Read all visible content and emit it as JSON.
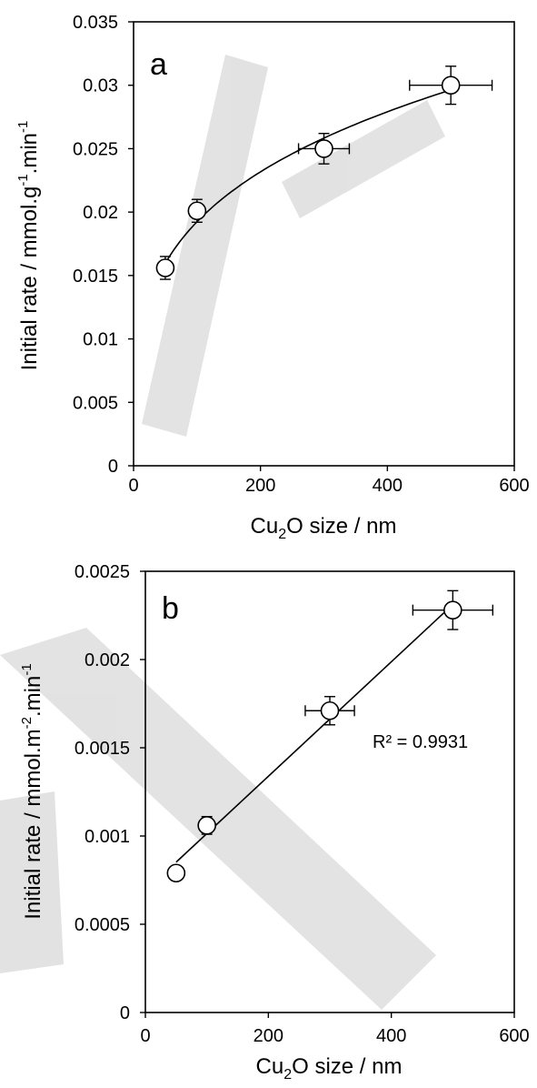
{
  "colors": {
    "watermark": "#d9d9d9",
    "axis": "#000000",
    "marker_fill": "#ffffff",
    "marker_stroke": "#000000"
  },
  "chart_data": [
    {
      "type": "scatter",
      "panel_label": "a",
      "xlabel": {
        "pre": "Cu",
        "sub": "2",
        "post": "O size / nm"
      },
      "ylabel": {
        "pre": "Initial rate / mmol.g",
        "sup1": "-1",
        "mid": ".min",
        "sup2": "-1"
      },
      "xlim": [
        0,
        600
      ],
      "ylim": [
        0,
        0.035
      ],
      "x_ticks": [
        0,
        200,
        400,
        600
      ],
      "y_ticks": [
        "0",
        "0.005",
        "0.01",
        "0.015",
        "0.02",
        "0.025",
        "0.03",
        "0.035"
      ],
      "grid": false,
      "points": [
        {
          "x": 50,
          "y": 0.0156,
          "y_err": 0.0009,
          "x_err": 0
        },
        {
          "x": 100,
          "y": 0.0201,
          "y_err": 0.0009,
          "x_err": 0
        },
        {
          "x": 300,
          "y": 0.025,
          "y_err": 0.0012,
          "x_err": 40
        },
        {
          "x": 500,
          "y": 0.03,
          "y_err": 0.0015,
          "x_err": 65
        }
      ],
      "trendline": {
        "kind": "power",
        "x_range": [
          50,
          500
        ]
      },
      "annotation": ""
    },
    {
      "type": "scatter",
      "panel_label": "b",
      "xlabel": {
        "pre": "Cu",
        "sub": "2",
        "post": "O size / nm"
      },
      "ylabel": {
        "pre": "Initial rate / mmol.m",
        "sup1": "-2",
        "mid": ".min",
        "sup2": "-1"
      },
      "xlim": [
        0,
        600
      ],
      "ylim": [
        0,
        0.0025
      ],
      "x_ticks": [
        0,
        200,
        400,
        600
      ],
      "y_ticks": [
        "0",
        "0.0005",
        "0.001",
        "0.0015",
        "0.002",
        "0.0025"
      ],
      "grid": false,
      "points": [
        {
          "x": 50,
          "y": 0.00079,
          "y_err": 0,
          "x_err": 0
        },
        {
          "x": 100,
          "y": 0.00106,
          "y_err": 5e-05,
          "x_err": 0
        },
        {
          "x": 300,
          "y": 0.00171,
          "y_err": 8e-05,
          "x_err": 40
        },
        {
          "x": 500,
          "y": 0.00228,
          "y_err": 0.00011,
          "x_err": 65
        }
      ],
      "trendline": {
        "kind": "linear",
        "x_range": [
          50,
          500
        ]
      },
      "annotation": "R² = 0.9931"
    }
  ]
}
